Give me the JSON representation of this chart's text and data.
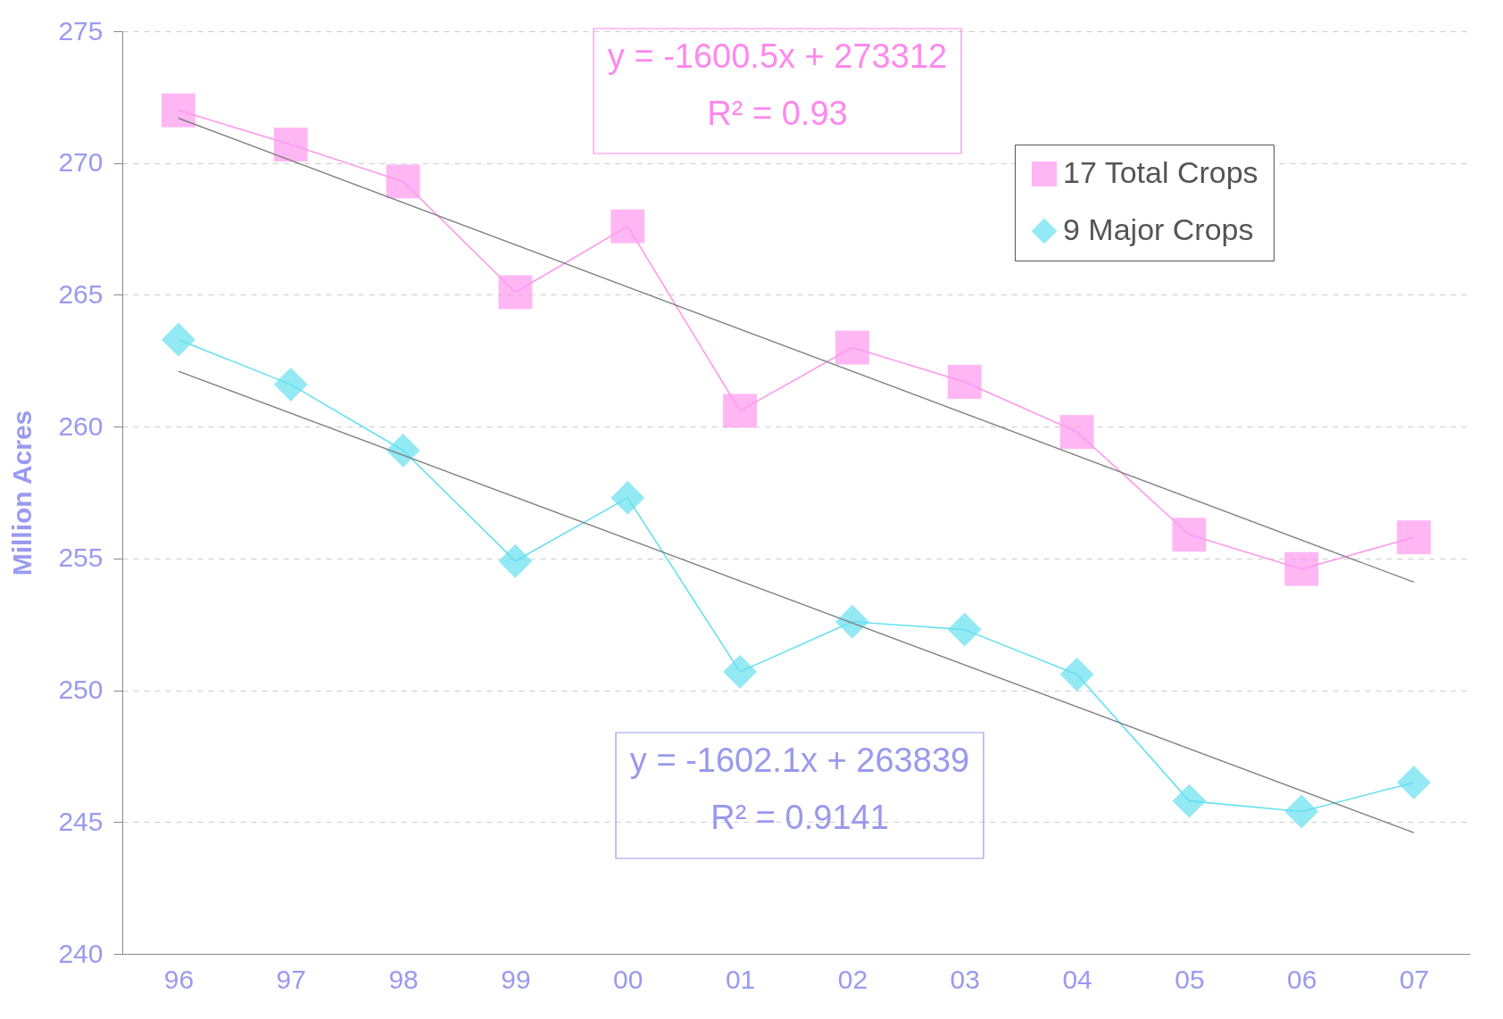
{
  "chart_data": {
    "type": "line",
    "ylabel": "Million Acres",
    "categories": [
      "96",
      "97",
      "98",
      "99",
      "00",
      "01",
      "02",
      "03",
      "04",
      "05",
      "06",
      "07"
    ],
    "ylim": [
      240,
      275
    ],
    "yticks": [
      240,
      245,
      250,
      255,
      260,
      265,
      270,
      275
    ],
    "grid": "y",
    "legend": "top right",
    "annotations": [
      "y = -1600.5x + 273312\nR² = 0.93",
      "y = -1602.1x + 263839\nR² = 0.9141"
    ],
    "series": [
      {
        "name": "17 Total Crops",
        "color": "#ff99ee",
        "marker": "square",
        "values": [
          272.0,
          270.7,
          269.3,
          265.1,
          267.6,
          260.6,
          263.0,
          261.7,
          259.8,
          255.9,
          254.6,
          255.8
        ]
      },
      {
        "name": "9 Major Crops",
        "color": "#66e0f0",
        "marker": "diamond",
        "values": [
          263.3,
          261.6,
          259.1,
          254.9,
          257.3,
          250.7,
          252.6,
          252.3,
          250.6,
          245.8,
          245.4,
          246.5
        ]
      },
      {
        "type": "line",
        "color": "#808080",
        "marker": "none",
        "x": [
          "96",
          "07"
        ],
        "values": [
          271.7,
          254.1
        ]
      },
      {
        "type": "line",
        "color": "#808080",
        "marker": "none",
        "x": [
          "96",
          "07"
        ],
        "values": [
          262.1,
          244.6
        ]
      }
    ]
  }
}
